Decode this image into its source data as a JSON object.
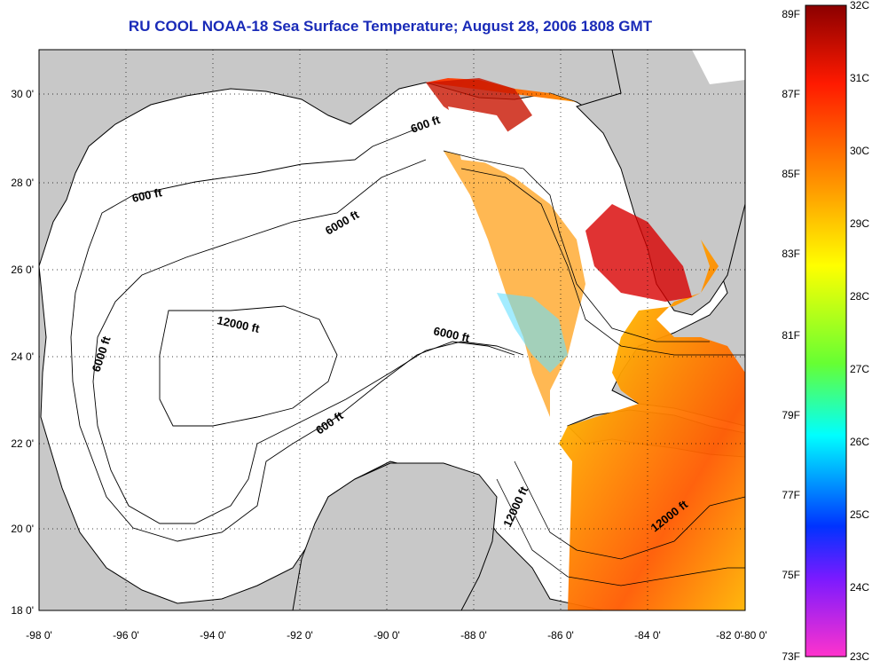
{
  "title": "RU COOL  NOAA-18  Sea Surface Temperature;  August 28, 2006 1808 GMT",
  "longitude_ticks": [
    "-98 0'",
    "-96 0'",
    "-94 0'",
    "-92 0'",
    "-90 0'",
    "-88 0'",
    "-86 0'",
    "-84 0'",
    "-82 0'",
    "-80 0'"
  ],
  "latitude_ticks": [
    "30 0'",
    "28 0'",
    "26 0'",
    "24 0'",
    "22 0'",
    "20 0'",
    "18 0'"
  ],
  "contour_labels": [
    {
      "text": "600 ft",
      "key": "c600a"
    },
    {
      "text": "600 ft",
      "key": "c600b"
    },
    {
      "text": "600 ft",
      "key": "c600c"
    },
    {
      "text": "6000 ft",
      "key": "c6000a"
    },
    {
      "text": "6000 ft",
      "key": "c6000b"
    },
    {
      "text": "6000 ft",
      "key": "c6000c"
    },
    {
      "text": "12000 ft",
      "key": "c12000a"
    },
    {
      "text": "12000 ft",
      "key": "c12000b"
    },
    {
      "text": "12000 ft",
      "key": "c12000c"
    }
  ],
  "colorbar": {
    "fahrenheit_labels": [
      "89F",
      "87F",
      "85F",
      "83F",
      "81F",
      "79F",
      "77F",
      "75F",
      "73F"
    ],
    "celsius_labels": [
      "32C",
      "31C",
      "30C",
      "29C",
      "28C",
      "27C",
      "26C",
      "25C",
      "24C",
      "23C"
    ],
    "colors": {
      "top": "#8b0000",
      "red": "#ff1a00",
      "orange": "#ff9900",
      "yellow": "#ffff00",
      "green": "#66ff33",
      "cyan": "#00ffff",
      "blue": "#0033ff",
      "purple": "#7a1aff",
      "magenta": "#ff33cc"
    }
  },
  "colors": {
    "land": "#c8c8c8",
    "water": "#ffffff",
    "title": "#1a2bb8"
  }
}
